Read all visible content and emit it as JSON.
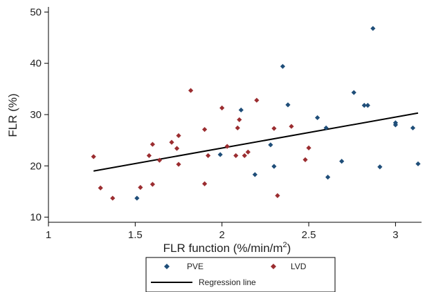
{
  "chart_data": {
    "type": "scatter",
    "xlabel": "FLR function (%/min/m",
    "xlabel_sup": "2",
    "xlabel_tail": ")",
    "ylabel": "FLR (%)",
    "xlim": [
      1,
      3.15
    ],
    "ylim": [
      9,
      51
    ],
    "x_ticks": [
      1,
      1.5,
      2,
      2.5,
      3
    ],
    "x_tick_labels": [
      "1",
      "1.5",
      "2",
      "2.5",
      "3"
    ],
    "y_ticks": [
      10,
      20,
      30,
      40,
      50
    ],
    "y_tick_labels": [
      "10",
      "20",
      "30",
      "40",
      "50"
    ],
    "grid": false,
    "legend_position": "bottom",
    "series": [
      {
        "name": "PVE",
        "color": "#1f4e79",
        "marker": "diamond",
        "points": [
          [
            1.51,
            13.7
          ],
          [
            1.99,
            22.2
          ],
          [
            2.11,
            30.9
          ],
          [
            2.19,
            18.3
          ],
          [
            2.28,
            24.1
          ],
          [
            2.3,
            19.9
          ],
          [
            2.35,
            39.4
          ],
          [
            2.38,
            31.9
          ],
          [
            2.55,
            29.4
          ],
          [
            2.6,
            27.4
          ],
          [
            2.61,
            17.8
          ],
          [
            2.69,
            20.9
          ],
          [
            2.76,
            34.3
          ],
          [
            2.82,
            31.8
          ],
          [
            2.84,
            31.8
          ],
          [
            2.87,
            46.8
          ],
          [
            2.91,
            19.8
          ],
          [
            3.0,
            28.4
          ],
          [
            3.0,
            28.0
          ],
          [
            3.1,
            27.4
          ],
          [
            3.13,
            20.4
          ]
        ]
      },
      {
        "name": "LVD",
        "color": "#9b2d30",
        "marker": "diamond",
        "points": [
          [
            1.26,
            21.8
          ],
          [
            1.3,
            15.7
          ],
          [
            1.37,
            13.7
          ],
          [
            1.53,
            15.8
          ],
          [
            1.58,
            22.0
          ],
          [
            1.6,
            24.2
          ],
          [
            1.6,
            16.4
          ],
          [
            1.64,
            21.1
          ],
          [
            1.71,
            24.6
          ],
          [
            1.74,
            23.4
          ],
          [
            1.75,
            25.9
          ],
          [
            1.75,
            20.3
          ],
          [
            1.82,
            34.7
          ],
          [
            1.9,
            27.1
          ],
          [
            1.9,
            16.5
          ],
          [
            1.92,
            22.0
          ],
          [
            2.0,
            31.3
          ],
          [
            2.03,
            23.8
          ],
          [
            2.08,
            22.0
          ],
          [
            2.09,
            27.4
          ],
          [
            2.1,
            29.0
          ],
          [
            2.13,
            22.0
          ],
          [
            2.15,
            22.7
          ],
          [
            2.2,
            32.8
          ],
          [
            2.3,
            27.3
          ],
          [
            2.32,
            14.2
          ],
          [
            2.4,
            27.7
          ],
          [
            2.48,
            21.2
          ],
          [
            2.5,
            23.5
          ]
        ]
      }
    ],
    "regression_line": {
      "name": "Regression line",
      "color": "#000000",
      "x": [
        1.26,
        3.13
      ],
      "y": [
        19.0,
        30.3
      ]
    }
  }
}
